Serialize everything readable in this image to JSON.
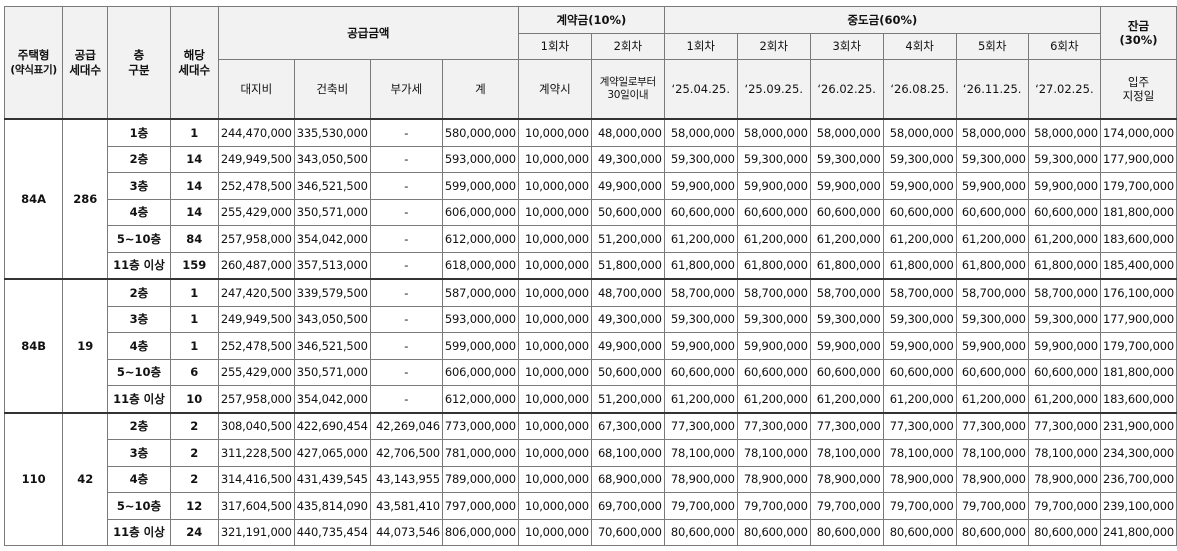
{
  "header": {
    "type_line1": "주택형",
    "type_line2": "(약식표기)",
    "supply_line1": "공급",
    "supply_line2": "세대수",
    "floor_line1": "층",
    "floor_line2": "구분",
    "units_line1": "해당",
    "units_line2": "세대수",
    "price": "공급금액",
    "land": "대지비",
    "building": "건축비",
    "vat": "부가세",
    "total": "계",
    "contract": "계약금(10%)",
    "interim": "중도금(60%)",
    "balance_line1": "잔금",
    "balance_line2": "(30%)",
    "c1": "1회차",
    "c2": "2회차",
    "i1": "1회차",
    "i2": "2회차",
    "i3": "3회차",
    "i4": "4회차",
    "i5": "5회차",
    "i6": "6회차",
    "c1_date": "계약시",
    "c2_date_line1": "계약일로부터",
    "c2_date_line2": "30일이내",
    "i1_date": "‘25.04.25.",
    "i2_date": "‘25.09.25.",
    "i3_date": "‘26.02.25.",
    "i4_date": "‘26.08.25.",
    "i5_date": "‘26.11.25.",
    "i6_date": "‘27.02.25.",
    "balance_date_line1": "입주",
    "balance_date_line2": "지정일"
  },
  "groups": [
    {
      "type": "84A",
      "supply": "286",
      "rows": [
        {
          "floor": "1층",
          "units": "1",
          "land": "244,470,000",
          "building": "335,530,000",
          "vat": "-",
          "total": "580,000,000",
          "c1": "10,000,000",
          "c2": "48,000,000",
          "i1": "58,000,000",
          "i2": "58,000,000",
          "i3": "58,000,000",
          "i4": "58,000,000",
          "i5": "58,000,000",
          "i6": "58,000,000",
          "balance": "174,000,000"
        },
        {
          "floor": "2층",
          "units": "14",
          "land": "249,949,500",
          "building": "343,050,500",
          "vat": "-",
          "total": "593,000,000",
          "c1": "10,000,000",
          "c2": "49,300,000",
          "i1": "59,300,000",
          "i2": "59,300,000",
          "i3": "59,300,000",
          "i4": "59,300,000",
          "i5": "59,300,000",
          "i6": "59,300,000",
          "balance": "177,900,000"
        },
        {
          "floor": "3층",
          "units": "14",
          "land": "252,478,500",
          "building": "346,521,500",
          "vat": "-",
          "total": "599,000,000",
          "c1": "10,000,000",
          "c2": "49,900,000",
          "i1": "59,900,000",
          "i2": "59,900,000",
          "i3": "59,900,000",
          "i4": "59,900,000",
          "i5": "59,900,000",
          "i6": "59,900,000",
          "balance": "179,700,000"
        },
        {
          "floor": "4층",
          "units": "14",
          "land": "255,429,000",
          "building": "350,571,000",
          "vat": "-",
          "total": "606,000,000",
          "c1": "10,000,000",
          "c2": "50,600,000",
          "i1": "60,600,000",
          "i2": "60,600,000",
          "i3": "60,600,000",
          "i4": "60,600,000",
          "i5": "60,600,000",
          "i6": "60,600,000",
          "balance": "181,800,000"
        },
        {
          "floor": "5~10층",
          "units": "84",
          "land": "257,958,000",
          "building": "354,042,000",
          "vat": "-",
          "total": "612,000,000",
          "c1": "10,000,000",
          "c2": "51,200,000",
          "i1": "61,200,000",
          "i2": "61,200,000",
          "i3": "61,200,000",
          "i4": "61,200,000",
          "i5": "61,200,000",
          "i6": "61,200,000",
          "balance": "183,600,000"
        },
        {
          "floor": "11층 이상",
          "units": "159",
          "land": "260,487,000",
          "building": "357,513,000",
          "vat": "-",
          "total": "618,000,000",
          "c1": "10,000,000",
          "c2": "51,800,000",
          "i1": "61,800,000",
          "i2": "61,800,000",
          "i3": "61,800,000",
          "i4": "61,800,000",
          "i5": "61,800,000",
          "i6": "61,800,000",
          "balance": "185,400,000"
        }
      ]
    },
    {
      "type": "84B",
      "supply": "19",
      "rows": [
        {
          "floor": "2층",
          "units": "1",
          "land": "247,420,500",
          "building": "339,579,500",
          "vat": "-",
          "total": "587,000,000",
          "c1": "10,000,000",
          "c2": "48,700,000",
          "i1": "58,700,000",
          "i2": "58,700,000",
          "i3": "58,700,000",
          "i4": "58,700,000",
          "i5": "58,700,000",
          "i6": "58,700,000",
          "balance": "176,100,000"
        },
        {
          "floor": "3층",
          "units": "1",
          "land": "249,949,500",
          "building": "343,050,500",
          "vat": "-",
          "total": "593,000,000",
          "c1": "10,000,000",
          "c2": "49,300,000",
          "i1": "59,300,000",
          "i2": "59,300,000",
          "i3": "59,300,000",
          "i4": "59,300,000",
          "i5": "59,300,000",
          "i6": "59,300,000",
          "balance": "177,900,000"
        },
        {
          "floor": "4층",
          "units": "1",
          "land": "252,478,500",
          "building": "346,521,500",
          "vat": "-",
          "total": "599,000,000",
          "c1": "10,000,000",
          "c2": "49,900,000",
          "i1": "59,900,000",
          "i2": "59,900,000",
          "i3": "59,900,000",
          "i4": "59,900,000",
          "i5": "59,900,000",
          "i6": "59,900,000",
          "balance": "179,700,000"
        },
        {
          "floor": "5~10층",
          "units": "6",
          "land": "255,429,000",
          "building": "350,571,000",
          "vat": "-",
          "total": "606,000,000",
          "c1": "10,000,000",
          "c2": "50,600,000",
          "i1": "60,600,000",
          "i2": "60,600,000",
          "i3": "60,600,000",
          "i4": "60,600,000",
          "i5": "60,600,000",
          "i6": "60,600,000",
          "balance": "181,800,000"
        },
        {
          "floor": "11층 이상",
          "units": "10",
          "land": "257,958,000",
          "building": "354,042,000",
          "vat": "-",
          "total": "612,000,000",
          "c1": "10,000,000",
          "c2": "51,200,000",
          "i1": "61,200,000",
          "i2": "61,200,000",
          "i3": "61,200,000",
          "i4": "61,200,000",
          "i5": "61,200,000",
          "i6": "61,200,000",
          "balance": "183,600,000"
        }
      ]
    },
    {
      "type": "110",
      "supply": "42",
      "rows": [
        {
          "floor": "2층",
          "units": "2",
          "land": "308,040,500",
          "building": "422,690,454",
          "vat": "42,269,046",
          "total": "773,000,000",
          "c1": "10,000,000",
          "c2": "67,300,000",
          "i1": "77,300,000",
          "i2": "77,300,000",
          "i3": "77,300,000",
          "i4": "77,300,000",
          "i5": "77,300,000",
          "i6": "77,300,000",
          "balance": "231,900,000"
        },
        {
          "floor": "3층",
          "units": "2",
          "land": "311,228,500",
          "building": "427,065,000",
          "vat": "42,706,500",
          "total": "781,000,000",
          "c1": "10,000,000",
          "c2": "68,100,000",
          "i1": "78,100,000",
          "i2": "78,100,000",
          "i3": "78,100,000",
          "i4": "78,100,000",
          "i5": "78,100,000",
          "i6": "78,100,000",
          "balance": "234,300,000"
        },
        {
          "floor": "4층",
          "units": "2",
          "land": "314,416,500",
          "building": "431,439,545",
          "vat": "43,143,955",
          "total": "789,000,000",
          "c1": "10,000,000",
          "c2": "68,900,000",
          "i1": "78,900,000",
          "i2": "78,900,000",
          "i3": "78,900,000",
          "i4": "78,900,000",
          "i5": "78,900,000",
          "i6": "78,900,000",
          "balance": "236,700,000"
        },
        {
          "floor": "5~10층",
          "units": "12",
          "land": "317,604,500",
          "building": "435,814,090",
          "vat": "43,581,410",
          "total": "797,000,000",
          "c1": "10,000,000",
          "c2": "69,700,000",
          "i1": "79,700,000",
          "i2": "79,700,000",
          "i3": "79,700,000",
          "i4": "79,700,000",
          "i5": "79,700,000",
          "i6": "79,700,000",
          "balance": "239,100,000"
        },
        {
          "floor": "11층 이상",
          "units": "24",
          "land": "321,191,000",
          "building": "440,735,454",
          "vat": "44,073,546",
          "total": "806,000,000",
          "c1": "10,000,000",
          "c2": "70,600,000",
          "i1": "80,600,000",
          "i2": "80,600,000",
          "i3": "80,600,000",
          "i4": "80,600,000",
          "i5": "80,600,000",
          "i6": "80,600,000",
          "balance": "241,800,000"
        }
      ]
    }
  ]
}
